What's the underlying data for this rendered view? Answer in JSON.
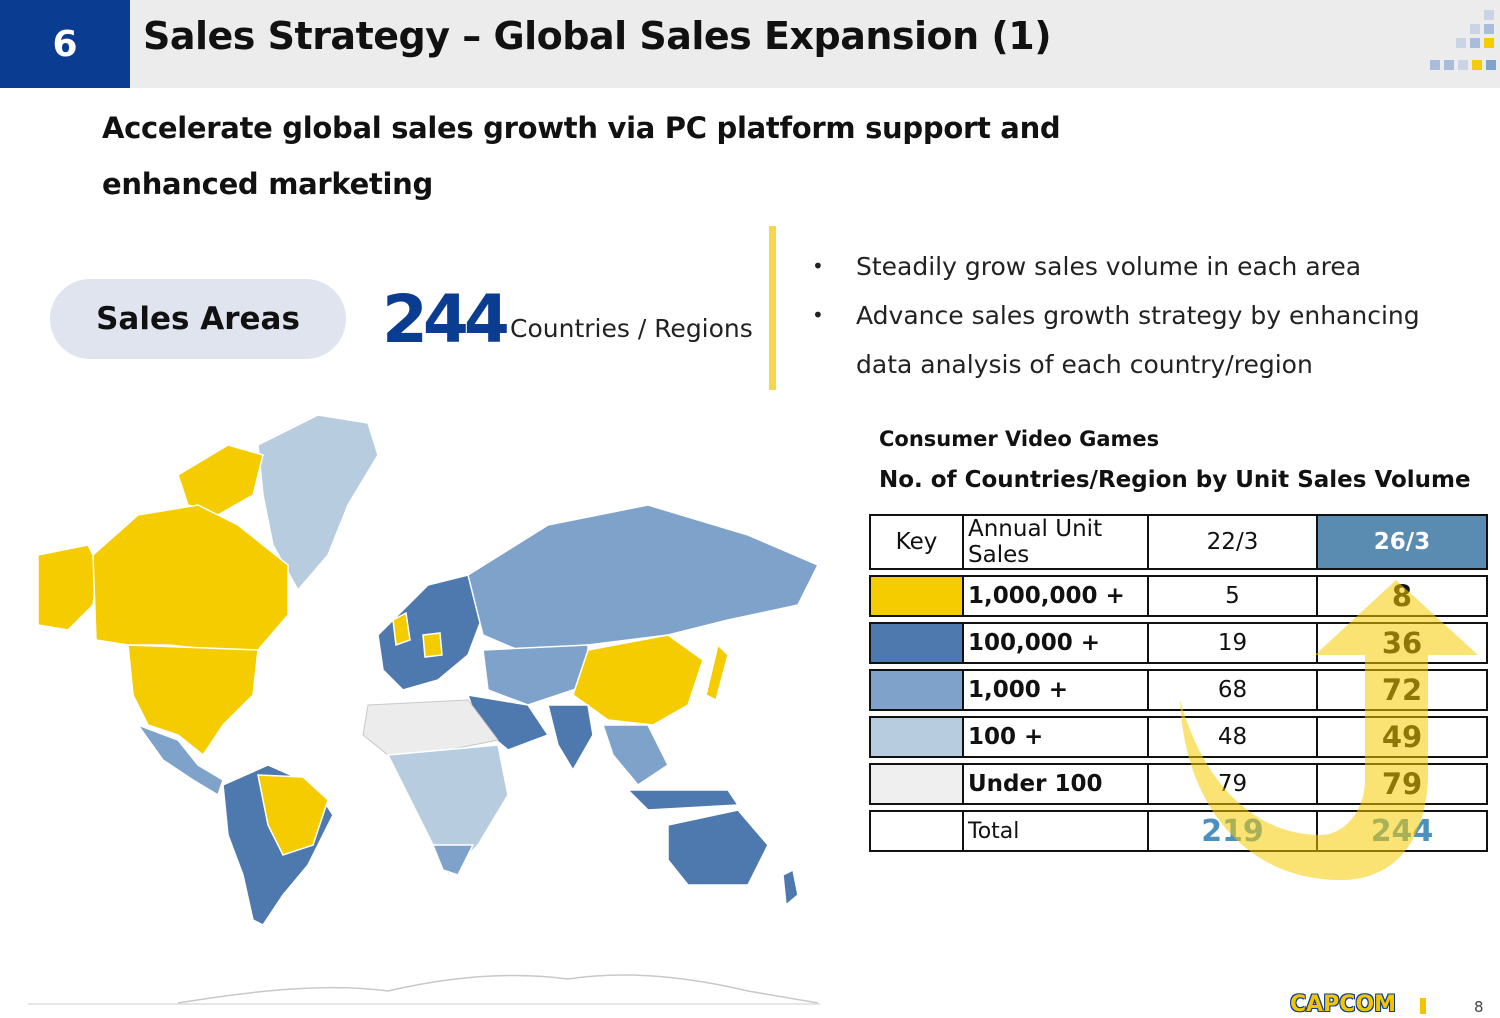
{
  "header": {
    "slide_number": "6",
    "title": "Sales Strategy – Global Sales Expansion (1)"
  },
  "subtitle": "Accelerate global sales growth via PC platform support and enhanced marketing",
  "sales_areas": {
    "label": "Sales Areas",
    "count": "244",
    "unit": "Countries / Regions"
  },
  "bullets": [
    "Steadily grow sales volume in each area",
    "Advance sales growth strategy by enhancing data analysis of each country/region"
  ],
  "table": {
    "caption_1": "Consumer Video Games",
    "caption_2": "No. of Countries/Region by Unit Sales Volume",
    "headers": {
      "key": "Key",
      "annual": "Annual Unit Sales",
      "col_a": "22/3",
      "col_b": "26/3"
    },
    "rows": [
      {
        "label": "1,000,000 +",
        "a": "5",
        "b": "8",
        "color": "#f5cc00"
      },
      {
        "label": "100,000 +",
        "a": "19",
        "b": "36",
        "color": "#4e79ae"
      },
      {
        "label": "1,000 +",
        "a": "68",
        "b": "72",
        "color": "#7fa2cb"
      },
      {
        "label": "100 +",
        "a": "48",
        "b": "49",
        "color": "#b8cce0"
      },
      {
        "label": "Under 100",
        "a": "79",
        "b": "79",
        "color": "#efefef"
      }
    ],
    "total": {
      "label": "Total",
      "a": "219",
      "b": "244"
    }
  },
  "map": {
    "colors": {
      "yellow": "#f5cc00",
      "dark": "#4e79ae",
      "mid": "#7fa2cb",
      "light": "#b8cce0",
      "pale": "#ececec"
    }
  },
  "footer": {
    "logo": "CAPCOM",
    "page": "8"
  },
  "colors": {
    "brand_blue": "#0a3d91",
    "accent_yellow": "#f6d64c",
    "header_bg": "#ececec",
    "col_b_header": "#5a8bb0",
    "total_blue": "#4a90c0"
  }
}
